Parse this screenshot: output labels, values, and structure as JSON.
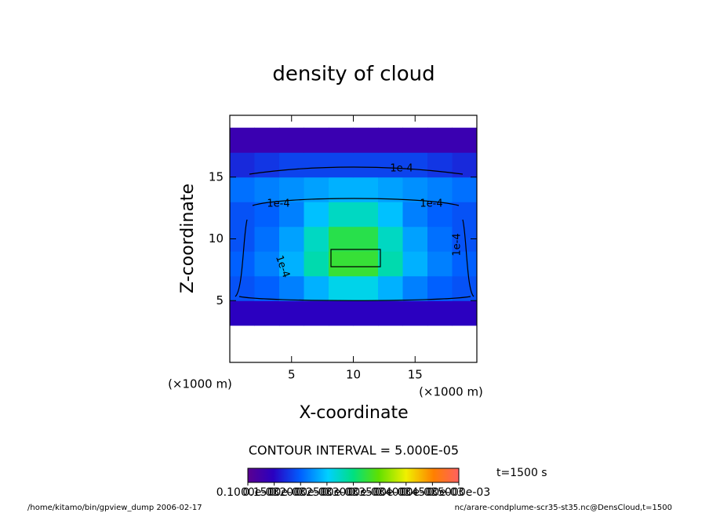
{
  "chart_data": {
    "type": "contour",
    "title": "density of cloud",
    "xlabel": "X-coordinate",
    "ylabel": "Z-coordinate",
    "x_unit": "(×1000 m)",
    "y_unit": "(×1000 m)",
    "xlim": [
      0,
      20
    ],
    "ylim": [
      0,
      20
    ],
    "xticks": [
      5,
      10,
      15
    ],
    "yticks": [
      5,
      10,
      15
    ],
    "x": [
      1,
      3,
      5,
      7,
      9,
      11,
      13,
      15,
      17,
      19
    ],
    "z": [
      4,
      6,
      8,
      10,
      12,
      14,
      16,
      18
    ],
    "values": [
      [
        3e-05,
        3e-05,
        3e-05,
        3e-05,
        3e-05,
        3e-05,
        3e-05,
        3e-05,
        3e-05,
        3e-05
      ],
      [
        9e-05,
        0.0001,
        0.00012,
        0.00015,
        0.00018,
        0.00018,
        0.00015,
        0.00012,
        0.0001,
        9e-05
      ],
      [
        0.0001,
        0.00012,
        0.00015,
        0.00021,
        0.00027,
        0.00027,
        0.00021,
        0.00015,
        0.00012,
        0.0001
      ],
      [
        9e-05,
        0.00011,
        0.00014,
        0.0002,
        0.00026,
        0.00026,
        0.0002,
        0.00014,
        0.00011,
        9e-05
      ],
      [
        9e-05,
        0.0001,
        0.00012,
        0.00016,
        0.0002,
        0.0002,
        0.00016,
        0.00012,
        0.0001,
        9e-05
      ],
      [
        0.00011,
        0.00012,
        0.00013,
        0.00014,
        0.00015,
        0.00015,
        0.00014,
        0.00013,
        0.00012,
        0.00011
      ],
      [
        6e-05,
        7e-05,
        8e-05,
        8e-05,
        8e-05,
        8e-05,
        8e-05,
        8e-05,
        7e-05,
        6e-05
      ],
      [
        1e-05,
        1e-05,
        1e-05,
        1e-05,
        1e-05,
        1e-05,
        1e-05,
        1e-05,
        1e-05,
        1e-05
      ]
    ],
    "contour_labels": [
      "1e-4",
      "1e-4",
      "1e-4",
      "1e-4",
      "1e-4"
    ],
    "contour_interval": "CONTOUR INTERVAL = 5.000E-05",
    "time_label": "t=1500 s",
    "clim": [
      0.0001,
      0.0005
    ],
    "cticks": [
      {
        "value": 0.0001,
        "label": "0.1000e-03"
      },
      {
        "value": 0.00015,
        "label": "0.1500e-03"
      },
      {
        "value": 0.0002,
        "label": "0.2000e-03"
      },
      {
        "value": 0.00025,
        "label": "0.2500e-03"
      },
      {
        "value": 0.0003,
        "label": "0.3000e-03"
      },
      {
        "value": 0.00035,
        "label": "0.3500e-03"
      },
      {
        "value": 0.0004,
        "label": "0.4000e-03"
      },
      {
        "value": 0.00045,
        "label": "0.4500e-03"
      },
      {
        "value": 0.0005,
        "label": "0.5000e-03"
      }
    ],
    "footer_left": "/home/kitamo/bin/gpview_dump  2006-02-17",
    "footer_right": "nc/arare-condplume-scr35-st35.nc@DensCloud,t=1500"
  }
}
